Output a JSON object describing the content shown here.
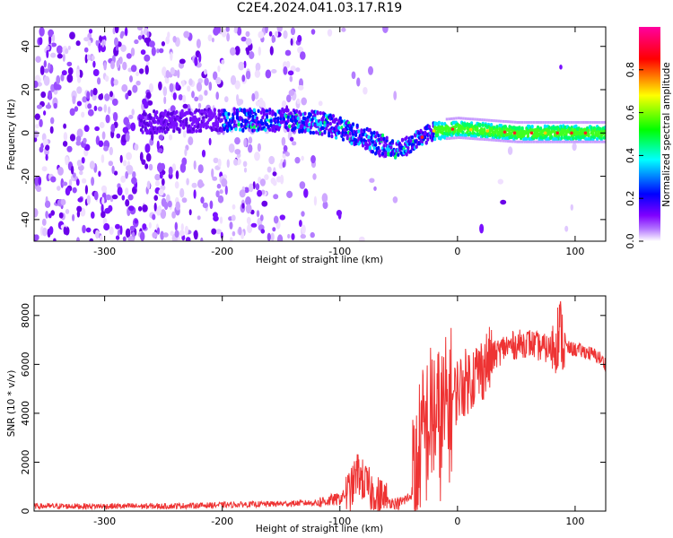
{
  "title": "C2E4.2024.041.03.17.R19",
  "chart_data": [
    {
      "type": "heatmap",
      "xlabel": "Height of straight line (km)",
      "ylabel": "Frequency (Hz)",
      "xlim": [
        -360,
        126
      ],
      "ylim": [
        -50,
        49
      ],
      "x_ticks": [
        -300,
        -200,
        -100,
        0,
        100
      ],
      "y_ticks": [
        -40,
        -20,
        0,
        20,
        40
      ],
      "colorbar": {
        "label": "Normalized spectral amplitude",
        "range": [
          0,
          1
        ],
        "ticks": [
          0.0,
          0.2,
          0.4,
          0.6,
          0.8
        ],
        "colormap": [
          "#ffffff",
          "#8000ff",
          "#0000ff",
          "#00ffff",
          "#00ff00",
          "#ffff00",
          "#ff0000",
          "#ff00a0"
        ]
      },
      "ridge": [
        {
          "x": -260,
          "y": 5
        },
        {
          "x": -200,
          "y": 6
        },
        {
          "x": -150,
          "y": 6
        },
        {
          "x": -120,
          "y": 5
        },
        {
          "x": -100,
          "y": 2
        },
        {
          "x": -80,
          "y": -2
        },
        {
          "x": -60,
          "y": -7
        },
        {
          "x": -50,
          "y": -8
        },
        {
          "x": -40,
          "y": -5
        },
        {
          "x": -20,
          "y": 1
        },
        {
          "x": 0,
          "y": 2
        },
        {
          "x": 50,
          "y": 0
        },
        {
          "x": 126,
          "y": 0
        }
      ],
      "grid": false
    },
    {
      "type": "line",
      "xlabel": "Height of straight line (km)",
      "ylabel": "SNR (10 * v/v)",
      "xlim": [
        -360,
        126
      ],
      "ylim": [
        0,
        8800
      ],
      "x_ticks": [
        -300,
        -200,
        -100,
        0,
        100
      ],
      "y_ticks": [
        0,
        2000,
        4000,
        6000,
        8000
      ],
      "series": [
        {
          "color": "#ee3333",
          "x": [
            -360,
            -300,
            -250,
            -200,
            -150,
            -120,
            -100,
            -90,
            -85,
            -80,
            -70,
            -60,
            -50,
            -40,
            -35,
            -30,
            -25,
            -20,
            -15,
            -10,
            -5,
            0,
            10,
            20,
            30,
            40,
            50,
            60,
            70,
            80,
            85,
            88,
            90,
            100,
            110,
            120,
            126
          ],
          "y": [
            200,
            200,
            200,
            250,
            300,
            350,
            500,
            900,
            1600,
            1200,
            600,
            400,
            300,
            600,
            1500,
            2800,
            3500,
            4000,
            3500,
            4000,
            4500,
            5000,
            5400,
            5800,
            6300,
            6700,
            6800,
            6900,
            6700,
            6600,
            7200,
            7400,
            6700,
            6600,
            6500,
            6300,
            6000
          ]
        }
      ],
      "grid": false
    }
  ]
}
